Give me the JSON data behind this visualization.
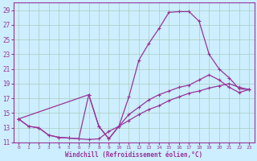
{
  "title": "",
  "xlabel": "Windchill (Refroidissement éolien,°C)",
  "background_color": "#cceeff",
  "grid_color": "#aaccbb",
  "line_color": "#993399",
  "xlim": [
    -0.5,
    23.5
  ],
  "ylim": [
    11,
    30
  ],
  "xticks": [
    0,
    1,
    2,
    3,
    4,
    5,
    6,
    7,
    8,
    9,
    10,
    11,
    12,
    13,
    14,
    15,
    16,
    17,
    18,
    19,
    20,
    21,
    22,
    23
  ],
  "yticks": [
    11,
    13,
    15,
    17,
    19,
    21,
    23,
    25,
    27,
    29
  ],
  "line1_x": [
    0,
    1,
    2,
    3,
    4,
    5,
    6,
    7,
    8,
    9,
    10,
    11,
    12,
    13,
    14,
    15,
    16,
    17,
    18,
    19,
    20,
    21,
    22,
    23
  ],
  "line1_y": [
    14.2,
    13.2,
    13.0,
    12.0,
    11.7,
    11.6,
    11.5,
    17.5,
    13.2,
    11.5,
    13.2,
    17.2,
    22.2,
    24.5,
    26.5,
    28.7,
    28.8,
    28.8,
    27.5,
    23.0,
    21.0,
    19.8,
    18.3,
    18.2
  ],
  "line2_x": [
    0,
    1,
    2,
    3,
    4,
    5,
    6,
    7,
    8,
    9,
    10,
    11,
    12,
    13,
    14,
    15,
    16,
    17,
    18,
    19,
    20,
    21,
    22,
    23
  ],
  "line2_y": [
    14.2,
    13.2,
    13.0,
    12.0,
    11.7,
    11.6,
    11.5,
    11.4,
    11.5,
    12.5,
    13.2,
    14.0,
    14.8,
    15.5,
    16.0,
    16.7,
    17.2,
    17.7,
    18.0,
    18.4,
    18.7,
    19.0,
    18.5,
    18.2
  ],
  "line3_x": [
    0,
    7,
    8,
    9,
    10,
    11,
    12,
    13,
    14,
    15,
    16,
    17,
    18,
    19,
    20,
    21,
    22,
    23
  ],
  "line3_y": [
    14.2,
    17.5,
    13.2,
    11.5,
    13.2,
    14.8,
    15.8,
    16.8,
    17.5,
    18.0,
    18.5,
    18.8,
    19.5,
    20.2,
    19.5,
    18.5,
    17.8,
    18.2
  ]
}
